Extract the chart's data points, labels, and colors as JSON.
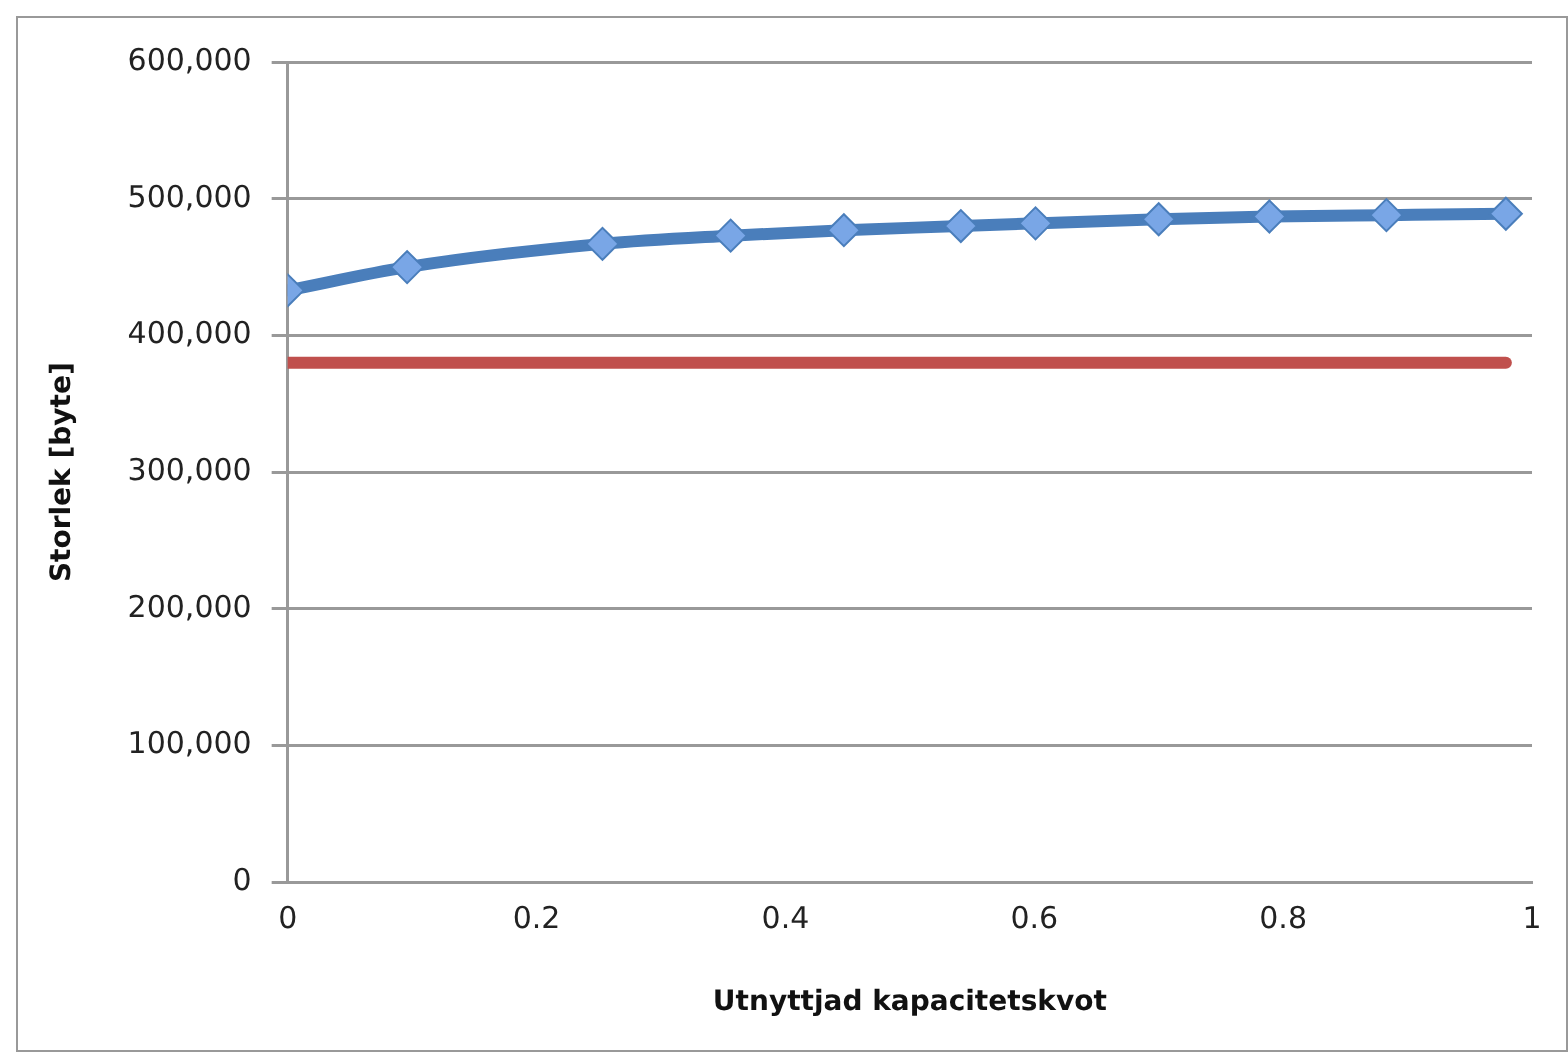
{
  "chart_data": {
    "type": "line",
    "xlabel": "Utnyttjad kapacitetskvot",
    "ylabel": "Storlek [byte]",
    "xlim": [
      0,
      1
    ],
    "xticks": [
      0,
      0.2,
      0.4,
      0.6,
      0.8,
      1
    ],
    "ylim": [
      0,
      600000
    ],
    "yticks": [
      {
        "value": 0,
        "label": "0"
      },
      {
        "value": 100000,
        "label": "100,000"
      },
      {
        "value": 200000,
        "label": "200,000"
      },
      {
        "value": 300000,
        "label": "300,000"
      },
      {
        "value": 400000,
        "label": "400,000"
      },
      {
        "value": 500000,
        "label": "500,000"
      },
      {
        "value": 600000,
        "label": "600,000"
      }
    ],
    "grid": "y",
    "legend": false,
    "series": [
      {
        "color": "#4a7ebb",
        "marker": "diamond",
        "x": [
          0,
          0.096,
          0.253,
          0.356,
          0.447,
          0.541,
          0.601,
          0.7,
          0.789,
          0.883,
          0.979
        ],
        "values": [
          433000,
          450000,
          467000,
          473000,
          477000,
          480000,
          482000,
          485000,
          487000,
          488000,
          489000
        ]
      },
      {
        "color": "#c0504d",
        "marker": "none",
        "x": [
          0,
          0.979
        ],
        "values": [
          380000,
          380000
        ]
      }
    ]
  }
}
